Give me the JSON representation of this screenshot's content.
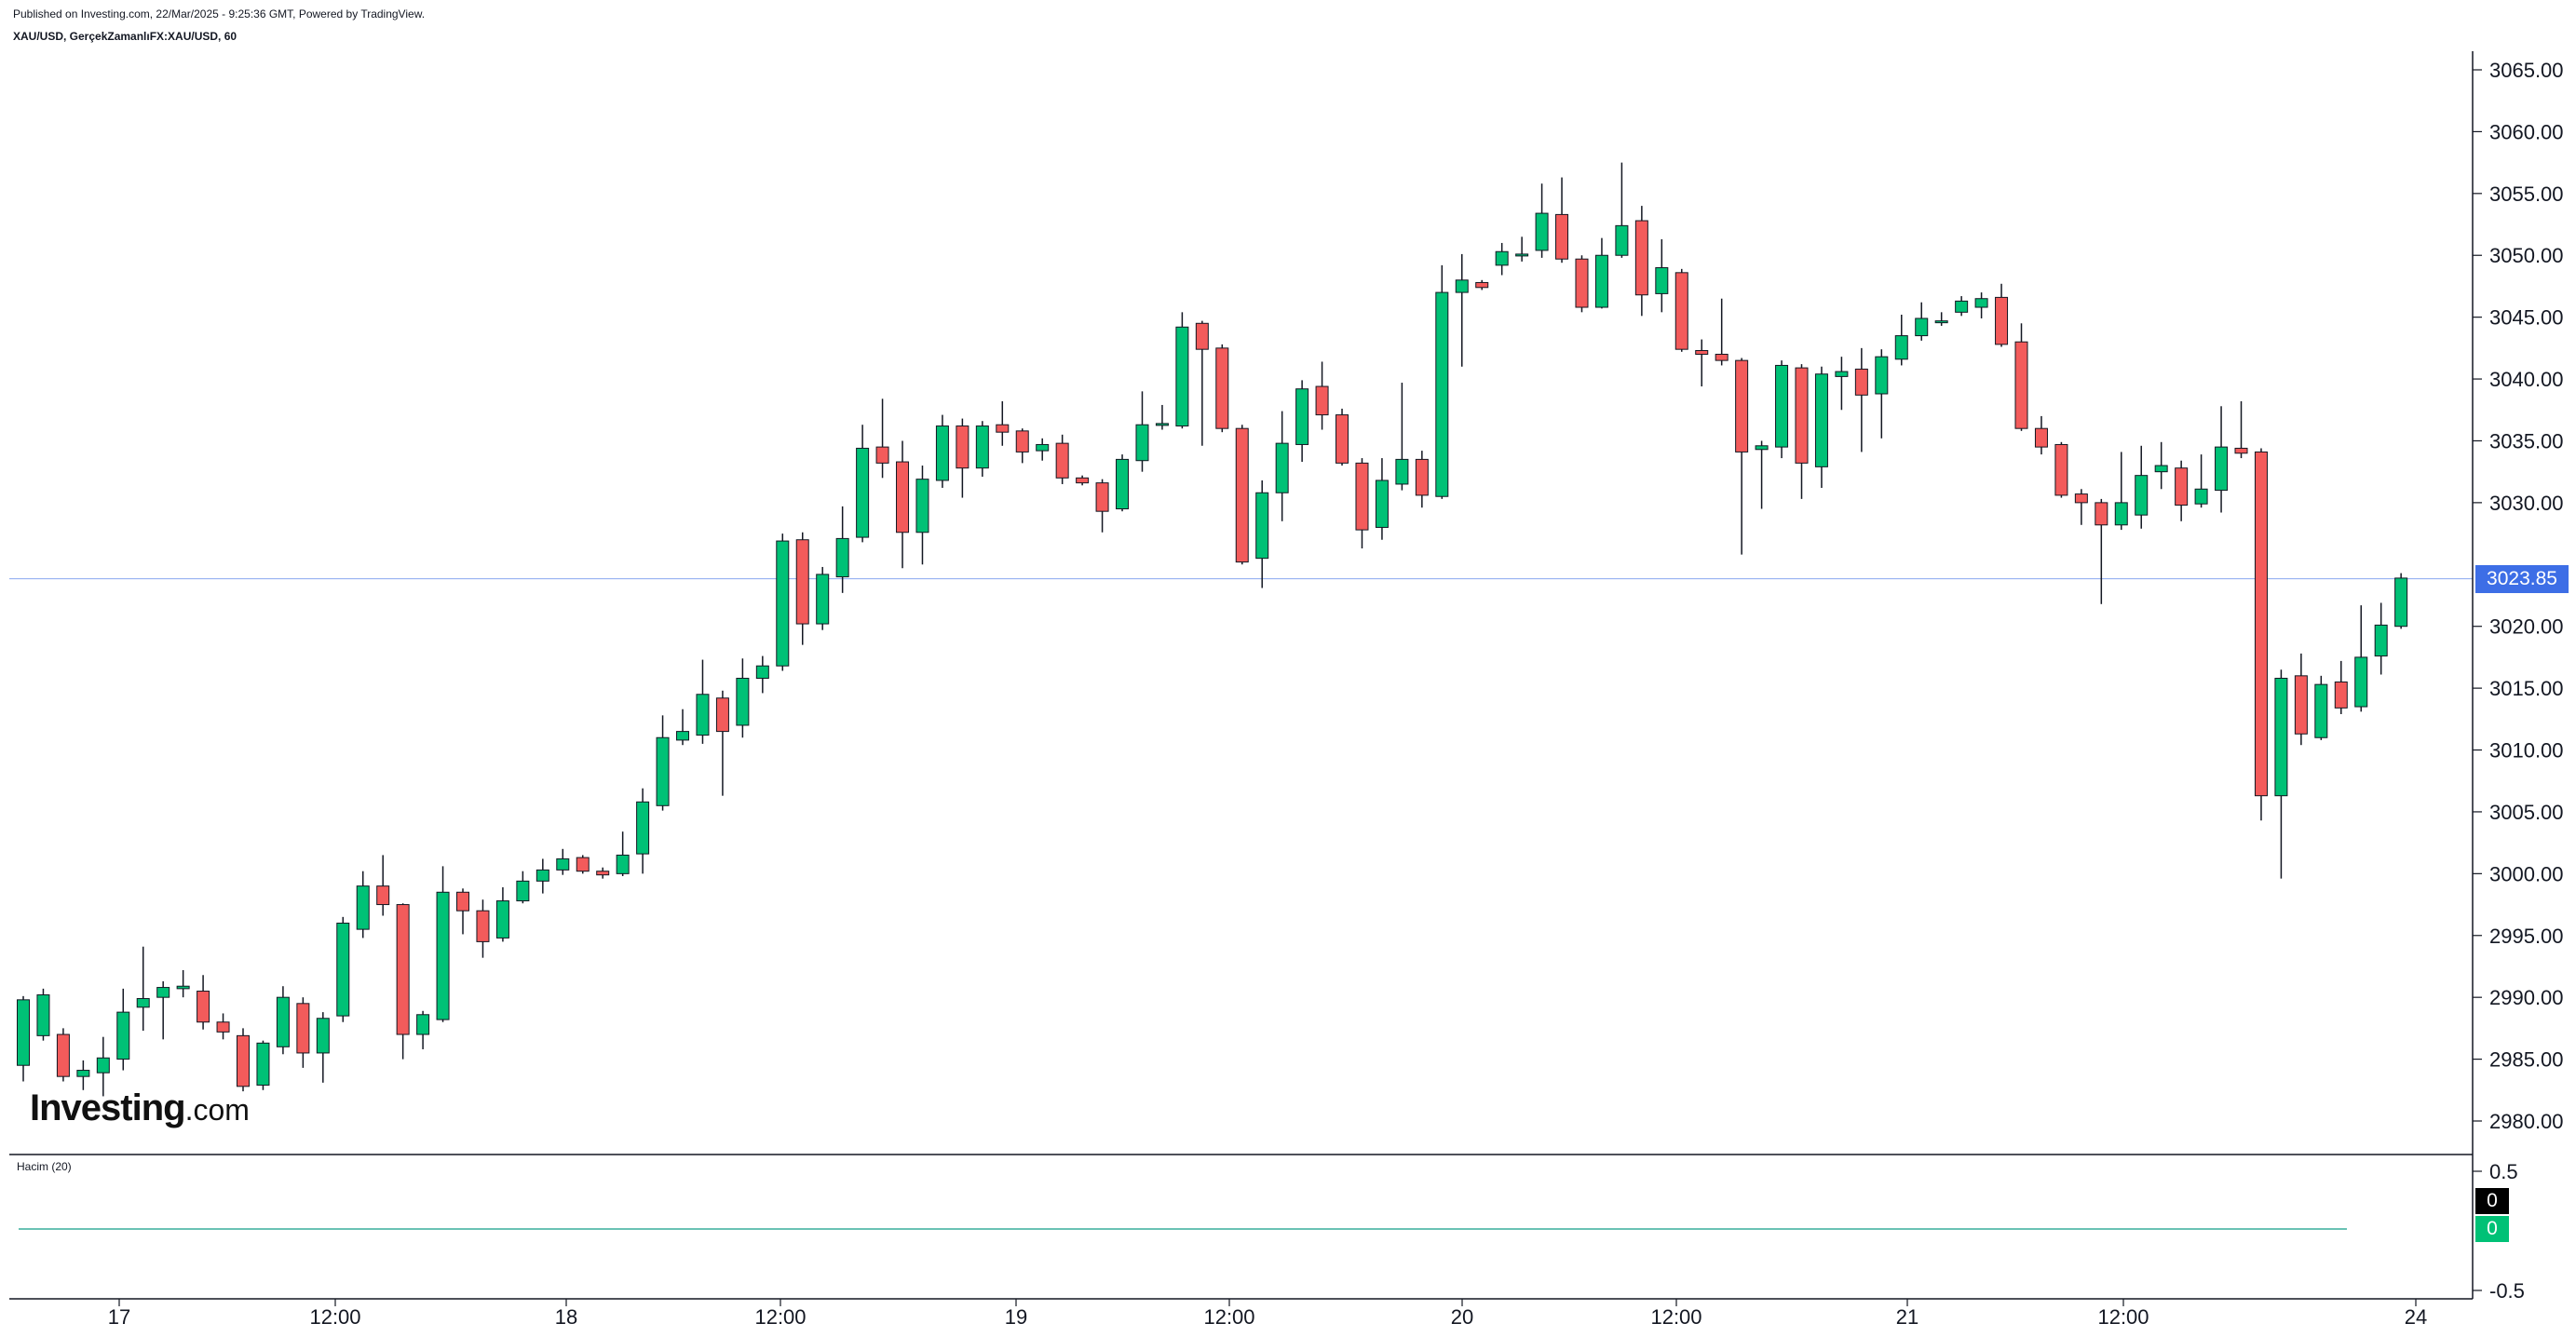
{
  "header": {
    "published": "Published on Investing.com, 22/Mar/2025 - 9:25:36 GMT, Powered by TradingView.",
    "symbol": "XAU/USD, GerçekZamanlıFX:XAU/USD, 60"
  },
  "watermark": {
    "brand": "Investing",
    "suffix": ".com"
  },
  "volume_panel": {
    "label": "Hacim (20)",
    "tag_top": "0",
    "tag_bottom": "0"
  },
  "last_price_tag": "3023.85",
  "colors": {
    "up": "#00c176",
    "down": "#f35b5b",
    "wick": "#131722",
    "price_line": "#3d6ee6",
    "volume_line": "#089981"
  },
  "chart_data": {
    "type": "candlestick",
    "instrument": "XAU/USD",
    "interval": "60",
    "ylim": [
      2977,
      3067
    ],
    "y_ticks": [
      2980,
      2985,
      2990,
      2995,
      3000,
      3005,
      3010,
      3015,
      3020,
      3025,
      3030,
      3035,
      3040,
      3045,
      3050,
      3055,
      3060,
      3065
    ],
    "y_tick_labels": [
      "2980.00",
      "2985.00",
      "2990.00",
      "2995.00",
      "3000.00",
      "3005.00",
      "3010.00",
      "3015.00",
      "3020.00",
      "3025.00",
      "3030.00",
      "3035.00",
      "3040.00",
      "3045.00",
      "3050.00",
      "3055.00",
      "3060.00",
      "3065.00"
    ],
    "x_labels": [
      "17",
      "12:00",
      "18",
      "12:00",
      "19",
      "12:00",
      "20",
      "12:00",
      "21",
      "12:00",
      "24"
    ],
    "last_price": 3023.85,
    "volume": {
      "ylim": [
        -0.5,
        0.5
      ],
      "ticks": [
        "0.5",
        "-0.5"
      ],
      "values": 0
    },
    "candles": [
      [
        2984.5,
        2989.8,
        2983.2,
        2990.1
      ],
      [
        2986.9,
        2990.2,
        2986.5,
        2990.7
      ],
      [
        2987.0,
        2983.6,
        2983.2,
        2987.5
      ],
      [
        2983.6,
        2984.1,
        2982.5,
        2984.9
      ],
      [
        2983.9,
        2985.1,
        2982.0,
        2986.8
      ],
      [
        2985.0,
        2988.8,
        2984.1,
        2990.7
      ],
      [
        2989.2,
        2989.9,
        2987.3,
        2994.1
      ],
      [
        2990.0,
        2990.8,
        2986.6,
        2991.3
      ],
      [
        2990.7,
        2990.9,
        2990.0,
        2992.2
      ],
      [
        2990.5,
        2988.0,
        2987.4,
        2991.8
      ],
      [
        2988.0,
        2987.2,
        2986.6,
        2988.7
      ],
      [
        2986.9,
        2982.8,
        2982.4,
        2987.5
      ],
      [
        2982.9,
        2986.3,
        2982.5,
        2986.5
      ],
      [
        2986.0,
        2990.0,
        2985.4,
        2990.9
      ],
      [
        2989.5,
        2985.5,
        2984.3,
        2990.0
      ],
      [
        2985.5,
        2988.3,
        2983.1,
        2988.8
      ],
      [
        2988.5,
        2996.0,
        2988.0,
        2996.5
      ],
      [
        2995.5,
        2999.0,
        2994.8,
        3000.2
      ],
      [
        2999.0,
        2997.5,
        2996.6,
        3001.5
      ],
      [
        2997.5,
        2987.0,
        2985.0,
        2997.6
      ],
      [
        2987.0,
        2988.6,
        2985.8,
        2988.9
      ],
      [
        2988.2,
        2998.5,
        2988.0,
        3000.6
      ],
      [
        2998.5,
        2997.0,
        2995.1,
        2998.8
      ],
      [
        2997.0,
        2994.5,
        2993.2,
        2997.9
      ],
      [
        2994.8,
        2997.8,
        2994.5,
        2998.9
      ],
      [
        2997.8,
        2999.4,
        2997.6,
        3000.2
      ],
      [
        2999.4,
        3000.3,
        2998.4,
        3001.2
      ],
      [
        3000.3,
        3001.2,
        2999.9,
        3002.0
      ],
      [
        3001.3,
        3000.2,
        3000.0,
        3001.5
      ],
      [
        3000.2,
        2999.9,
        2999.6,
        3000.5
      ],
      [
        3000.0,
        3001.5,
        2999.8,
        3003.4
      ],
      [
        3001.6,
        3005.8,
        3000.0,
        3006.9
      ],
      [
        3005.5,
        3011.0,
        3005.1,
        3012.8
      ],
      [
        3010.8,
        3011.5,
        3010.4,
        3013.3
      ],
      [
        3011.2,
        3014.5,
        3010.5,
        3017.3
      ],
      [
        3014.2,
        3011.5,
        3006.3,
        3014.8
      ],
      [
        3012.0,
        3015.8,
        3011.0,
        3017.4
      ],
      [
        3015.8,
        3016.8,
        3014.6,
        3017.6
      ],
      [
        3016.8,
        3026.9,
        3016.4,
        3027.5
      ],
      [
        3027.0,
        3020.2,
        3018.5,
        3027.6
      ],
      [
        3020.2,
        3024.2,
        3019.7,
        3024.8
      ],
      [
        3024.0,
        3027.1,
        3022.7,
        3029.7
      ],
      [
        3027.2,
        3034.4,
        3026.8,
        3036.3
      ],
      [
        3034.5,
        3033.2,
        3032.0,
        3038.4
      ],
      [
        3033.3,
        3027.6,
        3024.7,
        3035.0
      ],
      [
        3027.6,
        3031.9,
        3025.0,
        3033.0
      ],
      [
        3031.8,
        3036.2,
        3031.2,
        3037.1
      ],
      [
        3036.2,
        3032.8,
        3030.4,
        3036.8
      ],
      [
        3032.8,
        3036.2,
        3032.1,
        3036.6
      ],
      [
        3036.3,
        3035.7,
        3034.6,
        3038.2
      ],
      [
        3035.8,
        3034.1,
        3033.2,
        3036.0
      ],
      [
        3034.2,
        3034.7,
        3033.4,
        3035.2
      ],
      [
        3034.8,
        3032.0,
        3031.5,
        3035.5
      ],
      [
        3032.0,
        3031.6,
        3031.4,
        3032.2
      ],
      [
        3031.6,
        3029.3,
        3027.6,
        3031.9
      ],
      [
        3029.5,
        3033.5,
        3029.3,
        3033.9
      ],
      [
        3033.4,
        3036.3,
        3032.5,
        3039.0
      ],
      [
        3036.3,
        3036.4,
        3035.9,
        3037.9
      ],
      [
        3036.2,
        3044.2,
        3036.0,
        3045.4
      ],
      [
        3044.5,
        3042.4,
        3034.6,
        3044.7
      ],
      [
        3042.5,
        3036.0,
        3035.7,
        3042.8
      ],
      [
        3036.0,
        3025.2,
        3025.0,
        3036.3
      ],
      [
        3025.5,
        3030.8,
        3023.1,
        3031.8
      ],
      [
        3030.8,
        3034.8,
        3028.5,
        3037.4
      ],
      [
        3034.7,
        3039.2,
        3033.3,
        3039.9
      ],
      [
        3039.4,
        3037.1,
        3035.9,
        3041.4
      ],
      [
        3037.1,
        3033.2,
        3033.0,
        3037.6
      ],
      [
        3033.2,
        3027.8,
        3026.3,
        3033.6
      ],
      [
        3028.0,
        3031.8,
        3027.0,
        3033.6
      ],
      [
        3031.5,
        3033.5,
        3031.0,
        3039.7
      ],
      [
        3033.5,
        3030.6,
        3029.6,
        3034.2
      ],
      [
        3030.5,
        3047.0,
        3030.3,
        3049.2
      ],
      [
        3047.0,
        3048.0,
        3041.0,
        3050.1
      ],
      [
        3047.8,
        3047.4,
        3047.2,
        3048.0
      ],
      [
        3049.2,
        3050.3,
        3048.4,
        3051.0
      ],
      [
        3050.0,
        3050.1,
        3049.5,
        3051.5
      ],
      [
        3050.4,
        3053.4,
        3049.8,
        3055.8
      ],
      [
        3053.3,
        3049.7,
        3049.4,
        3056.3
      ],
      [
        3049.7,
        3045.8,
        3045.4,
        3050.0
      ],
      [
        3045.8,
        3050.0,
        3045.7,
        3051.4
      ],
      [
        3050.0,
        3052.4,
        3049.8,
        3057.5
      ],
      [
        3052.8,
        3046.8,
        3045.1,
        3054.0
      ],
      [
        3046.9,
        3049.0,
        3045.4,
        3051.3
      ],
      [
        3048.6,
        3042.4,
        3042.2,
        3048.9
      ],
      [
        3042.3,
        3042.0,
        3039.4,
        3043.2
      ],
      [
        3042.0,
        3041.5,
        3041.1,
        3046.5
      ],
      [
        3041.5,
        3034.1,
        3025.8,
        3041.7
      ],
      [
        3034.3,
        3034.6,
        3029.5,
        3035.0
      ],
      [
        3034.5,
        3041.1,
        3033.6,
        3041.5
      ],
      [
        3040.9,
        3033.2,
        3030.3,
        3041.2
      ],
      [
        3032.9,
        3040.4,
        3031.2,
        3041.0
      ],
      [
        3040.2,
        3040.6,
        3037.5,
        3041.8
      ],
      [
        3040.8,
        3038.7,
        3034.1,
        3042.5
      ],
      [
        3038.8,
        3041.8,
        3035.2,
        3042.4
      ],
      [
        3041.6,
        3043.5,
        3041.1,
        3045.2
      ],
      [
        3043.5,
        3044.9,
        3043.1,
        3046.2
      ],
      [
        3044.6,
        3044.7,
        3044.3,
        3045.4
      ],
      [
        3045.4,
        3046.3,
        3045.1,
        3046.7
      ],
      [
        3045.8,
        3046.5,
        3044.9,
        3047.0
      ],
      [
        3046.6,
        3042.8,
        3042.6,
        3047.7
      ],
      [
        3043.0,
        3036.0,
        3035.8,
        3044.5
      ],
      [
        3036.0,
        3034.5,
        3033.9,
        3037.0
      ],
      [
        3034.7,
        3030.6,
        3030.4,
        3034.9
      ],
      [
        3030.7,
        3030.0,
        3028.2,
        3031.1
      ],
      [
        3030.0,
        3028.2,
        3021.8,
        3030.3
      ],
      [
        3028.2,
        3030.0,
        3027.8,
        3034.1
      ],
      [
        3029.0,
        3032.2,
        3027.9,
        3034.6
      ],
      [
        3032.5,
        3033.0,
        3031.1,
        3034.9
      ],
      [
        3032.8,
        3029.8,
        3028.5,
        3033.4
      ],
      [
        3029.9,
        3031.1,
        3029.6,
        3033.9
      ],
      [
        3031.0,
        3034.5,
        3029.2,
        3037.8
      ],
      [
        3034.4,
        3034.0,
        3033.6,
        3038.2
      ],
      [
        3034.1,
        3006.3,
        3004.3,
        3034.4
      ],
      [
        3006.3,
        3015.8,
        2999.6,
        3016.5
      ],
      [
        3016.0,
        3011.3,
        3010.4,
        3017.8
      ],
      [
        3011.0,
        3015.3,
        3010.8,
        3016.0
      ],
      [
        3015.5,
        3013.4,
        3012.9,
        3017.2
      ],
      [
        3013.5,
        3017.5,
        3013.1,
        3021.7
      ],
      [
        3017.6,
        3020.1,
        3016.1,
        3021.9
      ],
      [
        3020.0,
        3023.9,
        3019.8,
        3024.3
      ]
    ]
  }
}
